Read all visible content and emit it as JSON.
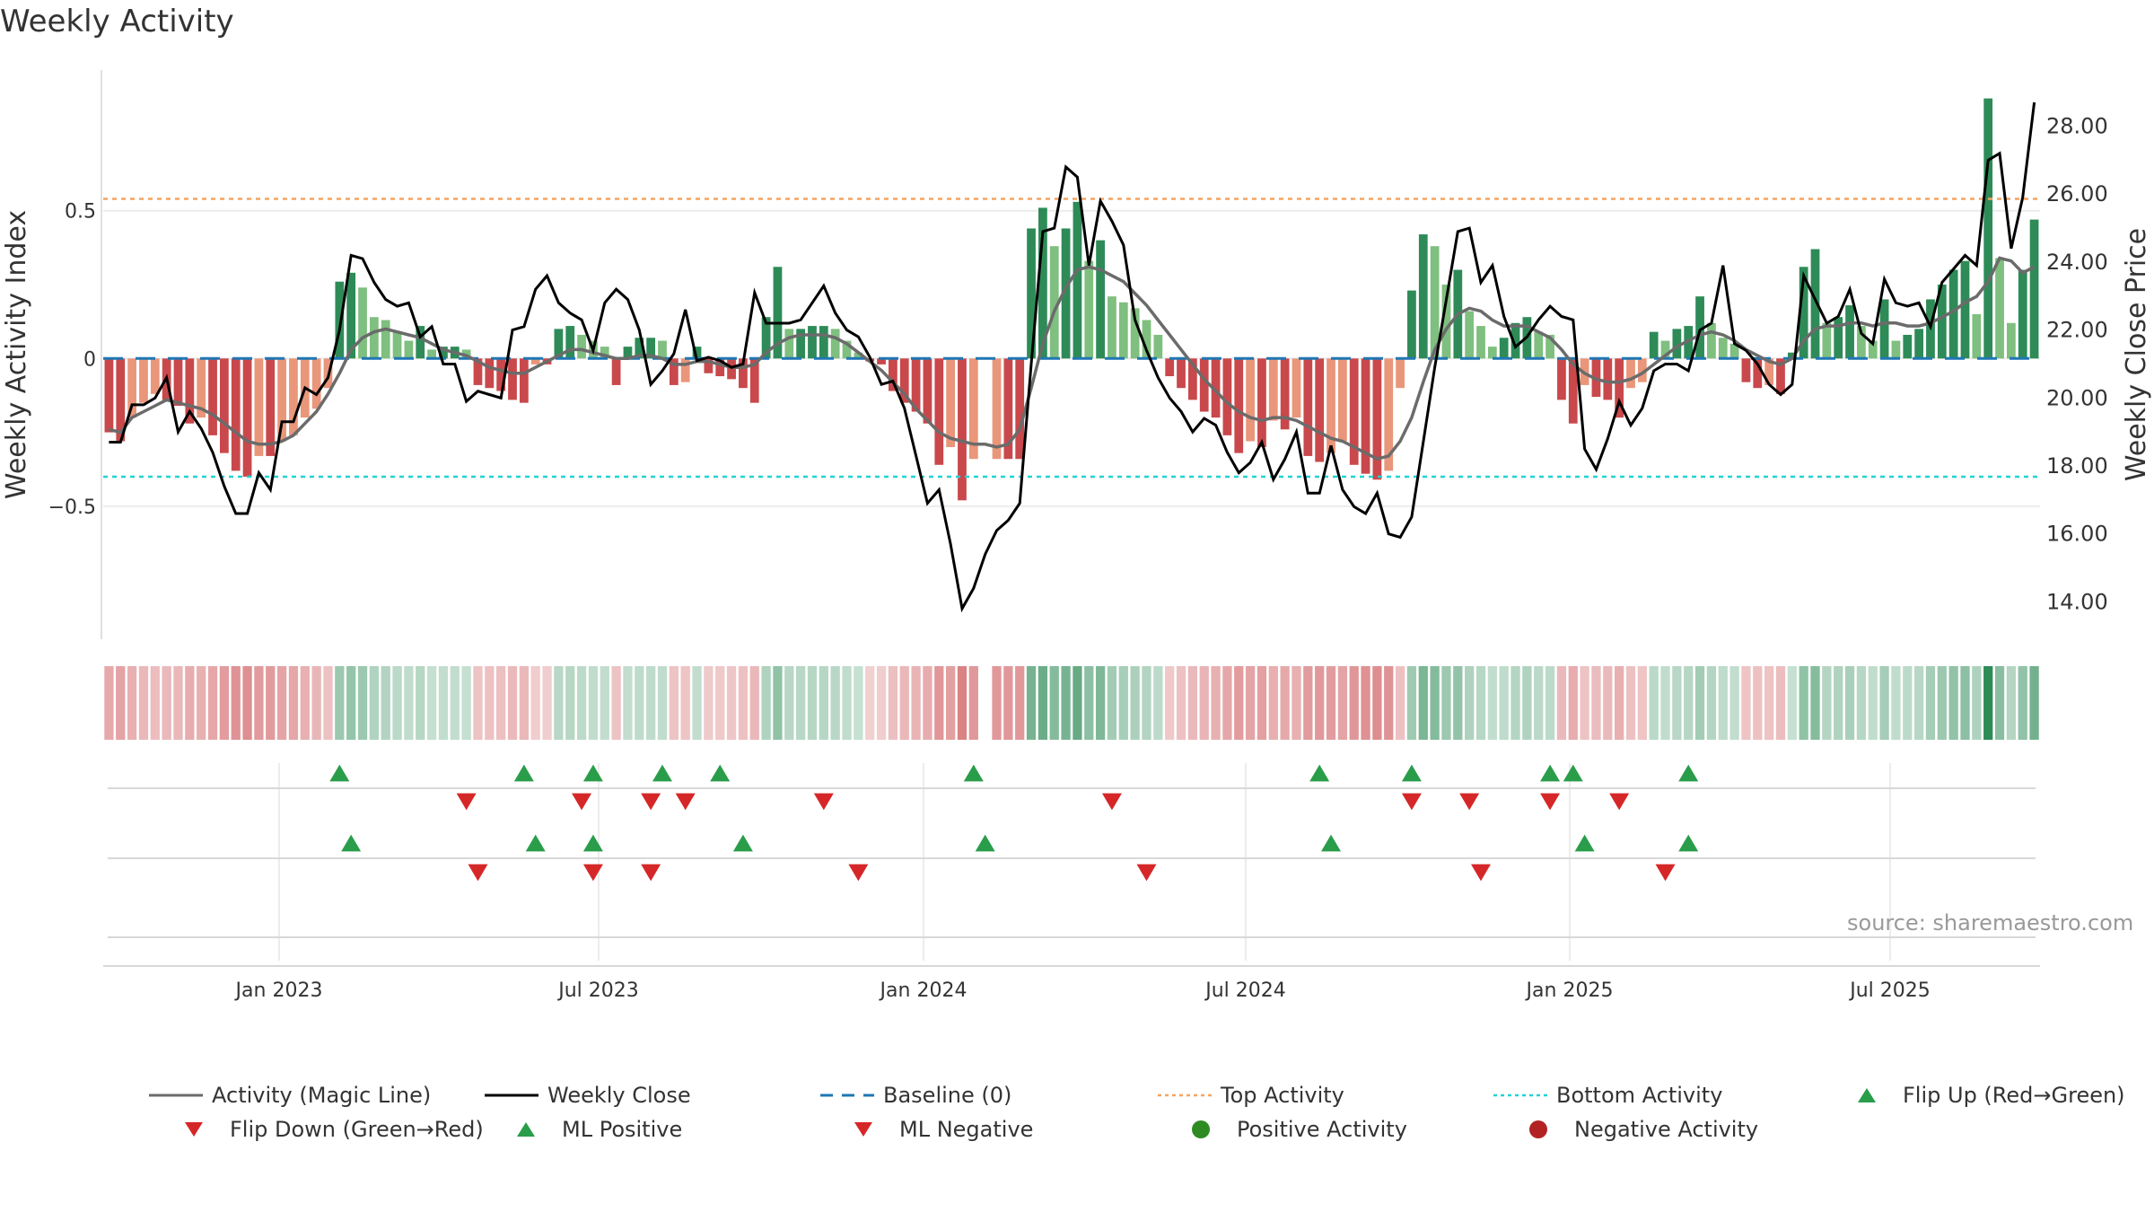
{
  "title": "Weekly Activity",
  "source": "source: sharemaestro.com",
  "colors": {
    "green_dark": "#2e8b57",
    "green_light": "#7fbf7f",
    "red_dark": "#c9484b",
    "red_light": "#e9967a",
    "magic_line": "#6b6b6b",
    "close_line": "#000000",
    "baseline": "#1f77b4",
    "top_line": "#f4a460",
    "bottom_line": "#22d3d3",
    "flip_up": "#2a9d4a",
    "flip_down": "#d62728"
  },
  "chart_data": {
    "type": "bar+line",
    "title": "Weekly Activity",
    "ylabel": "Weekly Activity Index",
    "y2label": "Weekly Close Price",
    "yticks": [
      "0.5",
      "0",
      "−0.5"
    ],
    "y2ticks": [
      "28.00",
      "26.00",
      "24.00",
      "22.00",
      "20.00",
      "18.00",
      "16.00",
      "14.00"
    ],
    "x_tick_labels": [
      "Jan 2023",
      "Jul 2023",
      "Jan 2024",
      "Jul 2024",
      "Jan 2025",
      "Jul 2025"
    ],
    "ylim": [
      -0.95,
      0.97
    ],
    "y2lim": [
      12.9,
      29.6
    ],
    "top_activity": 0.54,
    "bottom_activity": -0.4,
    "activity": [
      -0.25,
      -0.28,
      -0.2,
      -0.15,
      -0.12,
      -0.14,
      -0.16,
      -0.22,
      -0.2,
      -0.26,
      -0.32,
      -0.38,
      -0.4,
      -0.33,
      -0.33,
      -0.28,
      -0.26,
      -0.2,
      -0.17,
      -0.1,
      0.26,
      0.29,
      0.24,
      0.14,
      0.13,
      0.09,
      0.06,
      0.11,
      0.03,
      0.04,
      0.04,
      0.03,
      -0.09,
      -0.1,
      -0.11,
      -0.14,
      -0.15,
      -0.02,
      -0.02,
      0.1,
      0.11,
      0.08,
      0.06,
      0.04,
      -0.09,
      0.04,
      0.07,
      0.07,
      0.06,
      -0.09,
      -0.08,
      0.04,
      -0.05,
      -0.06,
      -0.07,
      -0.1,
      -0.15,
      0.14,
      0.31,
      0.1,
      0.1,
      0.11,
      0.11,
      0.1,
      0.06,
      0.02,
      -0.01,
      -0.02,
      -0.11,
      -0.15,
      -0.18,
      -0.22,
      -0.36,
      -0.3,
      -0.48,
      -0.34,
      null,
      -0.34,
      -0.34,
      -0.34,
      0.44,
      0.51,
      0.38,
      0.44,
      0.53,
      0.33,
      0.4,
      0.21,
      0.19,
      0.17,
      0.13,
      0.08,
      -0.06,
      -0.1,
      -0.14,
      -0.18,
      -0.2,
      -0.26,
      -0.32,
      -0.28,
      -0.3,
      -0.21,
      -0.24,
      -0.2,
      -0.33,
      -0.35,
      -0.32,
      -0.28,
      -0.36,
      -0.39,
      -0.41,
      -0.38,
      -0.1,
      0.23,
      0.42,
      0.38,
      0.25,
      0.3,
      0.16,
      0.11,
      0.04,
      0.07,
      0.12,
      0.14,
      0.09,
      0.08,
      -0.14,
      -0.22,
      -0.09,
      -0.13,
      -0.14,
      -0.2,
      -0.1,
      -0.08,
      0.09,
      0.06,
      0.1,
      0.11,
      0.21,
      0.12,
      0.07,
      0.05,
      -0.08,
      -0.1,
      -0.09,
      -0.12,
      0.02,
      0.31,
      0.37,
      0.12,
      0.14,
      0.18,
      0.11,
      0.06,
      0.2,
      0.06,
      0.08,
      0.1,
      0.2,
      0.25,
      0.3,
      0.33,
      0.15,
      0.88,
      0.34,
      0.12,
      0.3,
      0.47
    ],
    "magic_line": [
      -0.24,
      -0.25,
      -0.2,
      -0.18,
      -0.16,
      -0.14,
      -0.15,
      -0.16,
      -0.17,
      -0.19,
      -0.22,
      -0.25,
      -0.28,
      -0.29,
      -0.29,
      -0.28,
      -0.26,
      -0.22,
      -0.18,
      -0.12,
      -0.05,
      0.03,
      0.07,
      0.09,
      0.1,
      0.09,
      0.08,
      0.07,
      0.05,
      0.03,
      0.02,
      0.01,
      -0.01,
      -0.03,
      -0.04,
      -0.05,
      -0.05,
      -0.03,
      -0.01,
      0.01,
      0.03,
      0.03,
      0.02,
      0.01,
      0.0,
      0.0,
      0.01,
      0.01,
      0.0,
      -0.02,
      -0.02,
      -0.01,
      -0.01,
      -0.02,
      -0.03,
      -0.03,
      -0.02,
      0.02,
      0.05,
      0.07,
      0.08,
      0.08,
      0.08,
      0.07,
      0.05,
      0.02,
      -0.01,
      -0.04,
      -0.08,
      -0.12,
      -0.17,
      -0.21,
      -0.25,
      -0.27,
      -0.28,
      -0.29,
      -0.29,
      -0.3,
      -0.29,
      -0.24,
      -0.1,
      0.05,
      0.16,
      0.24,
      0.3,
      0.31,
      0.3,
      0.28,
      0.26,
      0.22,
      0.18,
      0.13,
      0.08,
      0.03,
      -0.02,
      -0.07,
      -0.11,
      -0.15,
      -0.18,
      -0.2,
      -0.21,
      -0.2,
      -0.2,
      -0.21,
      -0.23,
      -0.25,
      -0.27,
      -0.28,
      -0.3,
      -0.32,
      -0.34,
      -0.33,
      -0.28,
      -0.2,
      -0.08,
      0.03,
      0.1,
      0.15,
      0.17,
      0.16,
      0.13,
      0.11,
      0.11,
      0.11,
      0.09,
      0.07,
      0.03,
      -0.02,
      -0.05,
      -0.07,
      -0.08,
      -0.08,
      -0.07,
      -0.05,
      -0.02,
      0.01,
      0.04,
      0.06,
      0.08,
      0.09,
      0.08,
      0.06,
      0.03,
      0.01,
      -0.01,
      -0.02,
      0.0,
      0.06,
      0.1,
      0.11,
      0.11,
      0.12,
      0.12,
      0.11,
      0.12,
      0.12,
      0.11,
      0.11,
      0.12,
      0.14,
      0.16,
      0.19,
      0.21,
      0.26,
      0.34,
      0.33,
      0.29,
      0.31
    ],
    "weekly_close": [
      18.7,
      18.7,
      19.8,
      19.8,
      20.0,
      20.6,
      19.0,
      19.6,
      19.1,
      18.4,
      17.4,
      16.6,
      16.6,
      17.8,
      17.3,
      19.3,
      19.3,
      20.3,
      20.1,
      20.6,
      22.0,
      24.2,
      24.1,
      23.4,
      22.9,
      22.7,
      22.8,
      21.8,
      22.1,
      21.0,
      21.0,
      19.9,
      20.2,
      20.1,
      20.0,
      22.0,
      22.1,
      23.2,
      23.6,
      22.8,
      22.5,
      22.3,
      21.4,
      22.8,
      23.2,
      22.9,
      22.0,
      20.4,
      20.8,
      21.3,
      22.6,
      21.1,
      21.2,
      21.1,
      20.9,
      21.0,
      23.1,
      22.2,
      22.2,
      22.2,
      22.3,
      22.8,
      23.3,
      22.5,
      22.0,
      21.8,
      21.2,
      20.4,
      20.5,
      19.7,
      18.3,
      16.9,
      17.3,
      15.7,
      13.8,
      14.4,
      15.4,
      16.1,
      16.4,
      16.9,
      21.0,
      24.9,
      25.0,
      26.8,
      26.5,
      23.9,
      25.8,
      25.2,
      24.5,
      22.3,
      21.4,
      20.6,
      20.0,
      19.6,
      19.0,
      19.4,
      19.2,
      18.4,
      17.8,
      18.1,
      18.7,
      17.6,
      18.2,
      19.0,
      17.2,
      17.2,
      18.6,
      17.3,
      16.8,
      16.6,
      17.2,
      16.0,
      15.9,
      16.5,
      18.7,
      20.9,
      22.9,
      24.9,
      25.0,
      23.4,
      23.9,
      22.4,
      21.5,
      21.8,
      22.3,
      22.7,
      22.4,
      22.3,
      18.5,
      17.9,
      18.8,
      19.9,
      19.2,
      19.7,
      20.8,
      21.0,
      21.0,
      20.8,
      22.0,
      22.2,
      23.9,
      21.6,
      21.4,
      21.0,
      20.4,
      20.1,
      20.4,
      23.6,
      22.9,
      22.2,
      22.4,
      23.2,
      21.9,
      21.6,
      23.5,
      22.8,
      22.7,
      22.8,
      22.1,
      23.4,
      23.8,
      24.2,
      23.9,
      27.0,
      27.2,
      24.4,
      25.9,
      28.7
    ],
    "heat_strip": "one colored cell per week; color follows activity sign and magnitude",
    "markers": {
      "flip_up_weeks": [
        20,
        36,
        42,
        48,
        53,
        75,
        105,
        113,
        125,
        127,
        137
      ],
      "flip_down_weeks": [
        31,
        41,
        47,
        50,
        62,
        87,
        113,
        118,
        125,
        131
      ],
      "ml_positive_weeks": [
        21,
        37,
        42,
        55,
        76,
        106,
        128,
        137
      ],
      "ml_negative_weeks": [
        32,
        42,
        47,
        65,
        90,
        119,
        135
      ]
    },
    "legend": [
      {
        "label": "Activity (Magic Line)",
        "symbol": "line",
        "color": "#6b6b6b"
      },
      {
        "label": "Weekly Close",
        "symbol": "line",
        "color": "#000000"
      },
      {
        "label": "Baseline (0)",
        "symbol": "dash",
        "color": "#1f77b4"
      },
      {
        "label": "Top Activity",
        "symbol": "dot-line",
        "color": "#f4a460"
      },
      {
        "label": "Bottom Activity",
        "symbol": "dot-line",
        "color": "#22d3d3"
      },
      {
        "label": "Flip Up (Red→Green)",
        "symbol": "tri-up",
        "color": "#2a9d4a"
      },
      {
        "label": "Flip Down (Green→Red)",
        "symbol": "tri-down",
        "color": "#d62728"
      },
      {
        "label": "ML Positive",
        "symbol": "tri-up",
        "color": "#2a9d4a"
      },
      {
        "label": "ML Negative",
        "symbol": "tri-down",
        "color": "#d62728"
      },
      {
        "label": "Positive Activity",
        "symbol": "circle",
        "color": "#2e8b22"
      },
      {
        "label": "Negative Activity",
        "symbol": "circle",
        "color": "#b22222"
      }
    ]
  }
}
